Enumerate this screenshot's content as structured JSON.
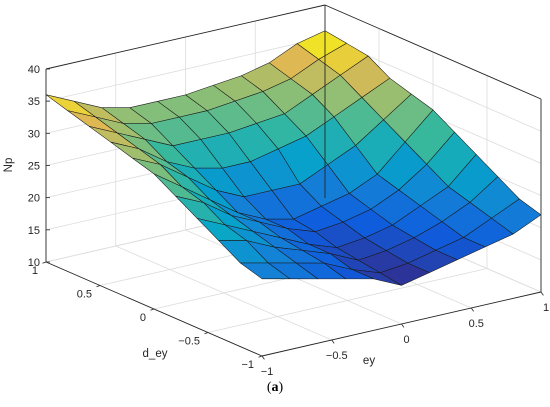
{
  "caption": {
    "open": "(",
    "letter": "a",
    "close": ")"
  },
  "chart_data": {
    "type": "surface",
    "xlabel": "ey",
    "ylabel": "d_ey",
    "zlabel": "Np",
    "xlim": [
      -1,
      1
    ],
    "ylim": [
      -1,
      1
    ],
    "zlim": [
      10,
      40
    ],
    "x_ticks": [
      -1,
      -0.5,
      0,
      0.5,
      1
    ],
    "y_ticks": [
      -1,
      -0.5,
      0,
      0.5,
      1
    ],
    "z_ticks": [
      10,
      15,
      20,
      25,
      30,
      35,
      40
    ],
    "x_tick_labels": [
      "−1",
      "−0.5",
      "0",
      "0.5",
      "1"
    ],
    "y_tick_labels": [
      "−1",
      "−0.5",
      "0",
      "0.5",
      "1"
    ],
    "z_tick_labels": [
      "10",
      "15",
      "20",
      "25",
      "30",
      "35",
      "40"
    ],
    "grid": true,
    "colormap": "parula",
    "x": [
      -1,
      -0.8,
      -0.6,
      -0.4,
      -0.2,
      0,
      0.2,
      0.4,
      0.6,
      0.8,
      1
    ],
    "y": [
      -1,
      -0.8,
      -0.6,
      -0.4,
      -0.2,
      0,
      0.2,
      0.4,
      0.6,
      0.8,
      1
    ],
    "z": [
      [
        22,
        21,
        20,
        19,
        18,
        16,
        17,
        18,
        19,
        20,
        22
      ],
      [
        23,
        22,
        21,
        20,
        18,
        16.5,
        17,
        18,
        19,
        21,
        23
      ],
      [
        25,
        24,
        22,
        20.5,
        19,
        17,
        17.5,
        18.5,
        20,
        22,
        25
      ],
      [
        27,
        25,
        23,
        21,
        19,
        17.5,
        18,
        19,
        21,
        23,
        27
      ],
      [
        29,
        27,
        24,
        22,
        20,
        18.5,
        19,
        20,
        22,
        25,
        29
      ],
      [
        31,
        28,
        25,
        22,
        20,
        19,
        20,
        21,
        23,
        27,
        31
      ],
      [
        32,
        30,
        27,
        24,
        22,
        22,
        22,
        24,
        26,
        29,
        32
      ],
      [
        33,
        31,
        28,
        26,
        25,
        25,
        26,
        27,
        29,
        31,
        33
      ],
      [
        34,
        32,
        30,
        28,
        28,
        28,
        28.5,
        29,
        31,
        33,
        35
      ],
      [
        35,
        33,
        31,
        30,
        30,
        30,
        30.5,
        31,
        32,
        34,
        35.5
      ],
      [
        36,
        34,
        32,
        31,
        31,
        31,
        31.5,
        32,
        33,
        35,
        36
      ]
    ]
  }
}
